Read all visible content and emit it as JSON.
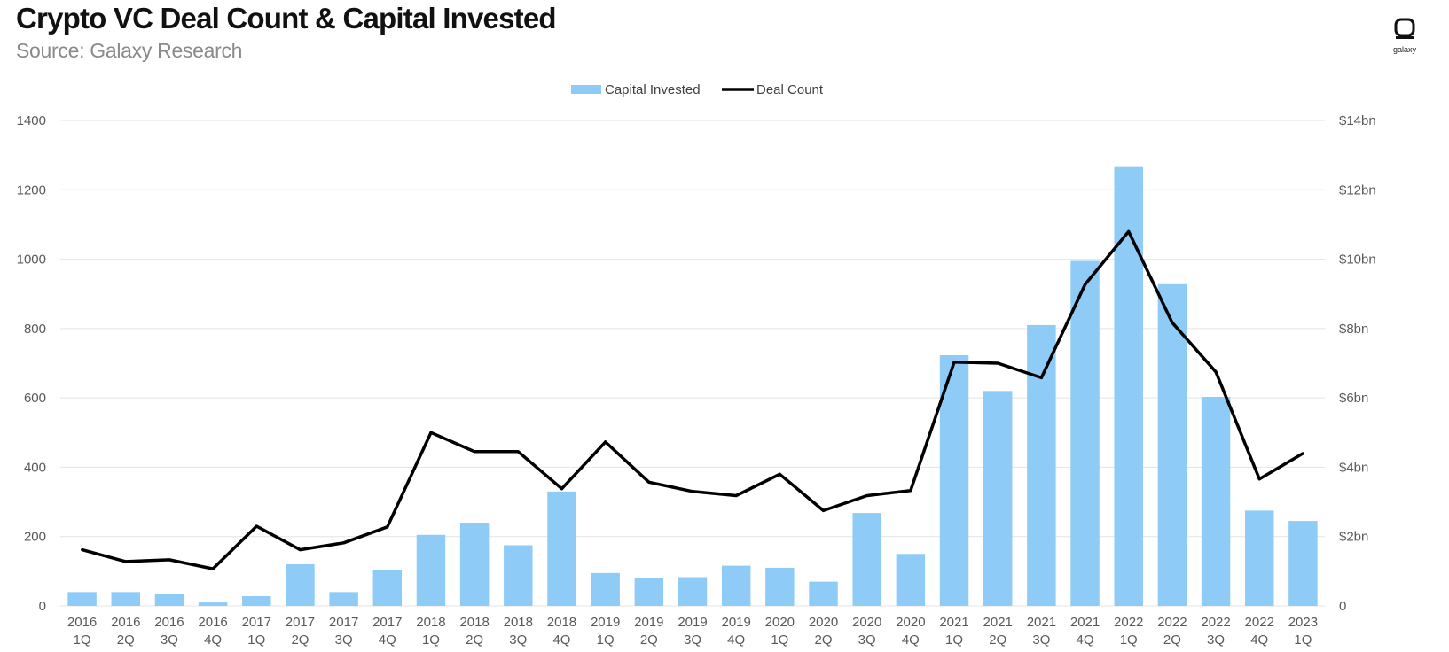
{
  "header": {
    "title": "Crypto VC Deal Count & Capital Invested",
    "subtitle": "Source: Galaxy Research",
    "logo_text": "galaxy"
  },
  "colors": {
    "bar": "#8ecbf7",
    "line": "#000000",
    "grid": "#e4e4e4"
  },
  "chart_data": {
    "type": "bar",
    "title": "Crypto VC Deal Count & Capital Invested",
    "legend_position": "top-center",
    "grid": true,
    "categories": [
      [
        "2016",
        "1Q"
      ],
      [
        "2016",
        "2Q"
      ],
      [
        "2016",
        "3Q"
      ],
      [
        "2016",
        "4Q"
      ],
      [
        "2017",
        "1Q"
      ],
      [
        "2017",
        "2Q"
      ],
      [
        "2017",
        "3Q"
      ],
      [
        "2017",
        "4Q"
      ],
      [
        "2018",
        "1Q"
      ],
      [
        "2018",
        "2Q"
      ],
      [
        "2018",
        "3Q"
      ],
      [
        "2018",
        "4Q"
      ],
      [
        "2019",
        "1Q"
      ],
      [
        "2019",
        "2Q"
      ],
      [
        "2019",
        "3Q"
      ],
      [
        "2019",
        "4Q"
      ],
      [
        "2020",
        "1Q"
      ],
      [
        "2020",
        "2Q"
      ],
      [
        "2020",
        "3Q"
      ],
      [
        "2020",
        "4Q"
      ],
      [
        "2021",
        "1Q"
      ],
      [
        "2021",
        "2Q"
      ],
      [
        "2021",
        "3Q"
      ],
      [
        "2021",
        "4Q"
      ],
      [
        "2022",
        "1Q"
      ],
      [
        "2022",
        "2Q"
      ],
      [
        "2022",
        "3Q"
      ],
      [
        "2022",
        "4Q"
      ],
      [
        "2023",
        "1Q"
      ]
    ],
    "series": [
      {
        "name": "Capital Invested",
        "type": "bar",
        "axis": "right",
        "unit": "bn",
        "values": [
          0.4,
          0.4,
          0.35,
          0.1,
          0.28,
          1.2,
          0.4,
          1.03,
          2.05,
          2.4,
          1.75,
          3.3,
          0.95,
          0.8,
          0.83,
          1.16,
          1.1,
          0.7,
          2.68,
          1.5,
          7.23,
          6.2,
          8.1,
          9.95,
          12.68,
          9.28,
          6.03,
          2.75,
          2.45
        ]
      },
      {
        "name": "Deal Count",
        "type": "line",
        "axis": "left",
        "values": [
          162,
          128,
          133,
          107,
          230,
          162,
          182,
          228,
          500,
          445,
          445,
          338,
          473,
          357,
          330,
          318,
          380,
          275,
          318,
          333,
          703,
          700,
          658,
          927,
          1080,
          817,
          675,
          366,
          440
        ]
      }
    ],
    "y_left": {
      "ylim": [
        0,
        1400
      ],
      "ticks": [
        "0",
        "200",
        "400",
        "600",
        "800",
        "1000",
        "1200",
        "1400"
      ]
    },
    "y_right": {
      "ylim": [
        0,
        14
      ],
      "ticks": [
        "0",
        "$2bn",
        "$4bn",
        "$6bn",
        "$8bn",
        "$10bn",
        "$12bn",
        "$14bn"
      ]
    }
  }
}
